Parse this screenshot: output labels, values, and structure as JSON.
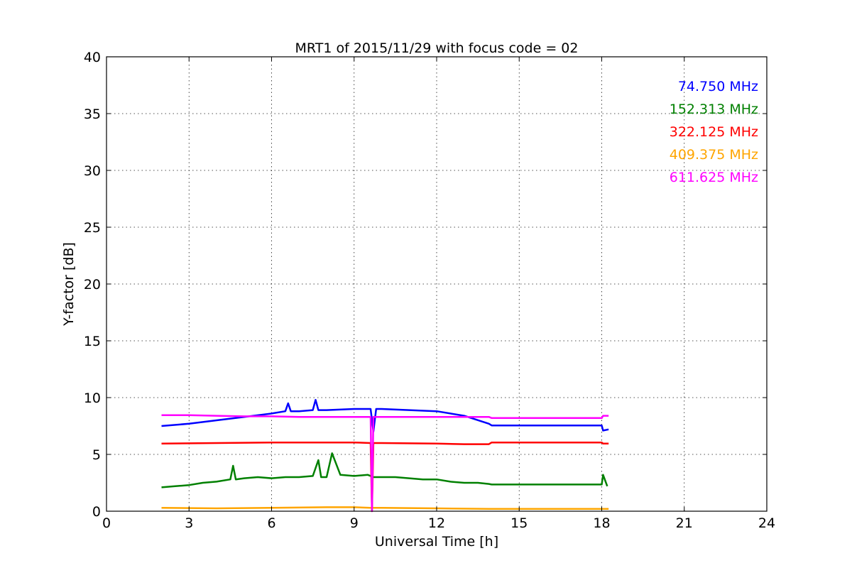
{
  "chart_data": {
    "type": "line",
    "title": "MRT1 of 2015/11/29 with focus code = 02",
    "xlabel": "Universal Time [h]",
    "ylabel": "Y-factor [dB]",
    "xlim": [
      0,
      24
    ],
    "ylim": [
      0,
      40
    ],
    "xticks": [
      0,
      3,
      6,
      9,
      12,
      15,
      18,
      21,
      24
    ],
    "yticks": [
      0,
      5,
      10,
      15,
      20,
      25,
      30,
      35,
      40
    ],
    "xtick_labels": [
      "0",
      "3",
      "6",
      "9",
      "12",
      "15",
      "18",
      "21",
      "24"
    ],
    "ytick_labels": [
      "0",
      "5",
      "10",
      "15",
      "20",
      "25",
      "30",
      "35",
      "40"
    ],
    "grid": true,
    "legend_position": "top-right",
    "series": [
      {
        "name": "74.750 MHz",
        "color": "#0000ff",
        "x": [
          2.0,
          3.0,
          4.0,
          5.0,
          6.0,
          6.5,
          6.6,
          6.7,
          7.0,
          7.5,
          7.6,
          7.7,
          8.0,
          9.0,
          9.6,
          9.7,
          9.8,
          10.0,
          11.0,
          12.0,
          13.0,
          13.9,
          14.0,
          18.0,
          18.05,
          18.25
        ],
        "y": [
          7.5,
          7.7,
          8.0,
          8.3,
          8.6,
          8.8,
          9.5,
          8.8,
          8.8,
          8.9,
          9.8,
          8.9,
          8.9,
          9.0,
          9.0,
          7.0,
          9.0,
          9.0,
          8.9,
          8.8,
          8.4,
          7.7,
          7.55,
          7.55,
          7.1,
          7.2
        ]
      },
      {
        "name": "152.313 MHz",
        "color": "#008000",
        "x": [
          2.0,
          2.5,
          3.0,
          3.5,
          4.0,
          4.5,
          4.6,
          4.7,
          5.0,
          5.5,
          6.0,
          6.5,
          7.0,
          7.5,
          7.7,
          7.8,
          8.0,
          8.2,
          8.5,
          9.0,
          9.5,
          9.7,
          10.0,
          10.5,
          11.0,
          11.5,
          12.0,
          12.5,
          13.0,
          13.5,
          13.9,
          14.0,
          18.0,
          18.05,
          18.2
        ],
        "y": [
          2.1,
          2.2,
          2.3,
          2.5,
          2.6,
          2.8,
          4.0,
          2.8,
          2.9,
          3.0,
          2.9,
          3.0,
          3.0,
          3.1,
          4.5,
          3.0,
          3.0,
          5.1,
          3.2,
          3.1,
          3.2,
          3.0,
          3.0,
          3.0,
          2.9,
          2.8,
          2.8,
          2.6,
          2.5,
          2.5,
          2.4,
          2.35,
          2.35,
          3.2,
          2.2
        ]
      },
      {
        "name": "322.125 MHz",
        "color": "#ff0000",
        "x": [
          2.0,
          4.0,
          6.0,
          8.0,
          9.0,
          9.6,
          9.65,
          9.7,
          10.0,
          12.0,
          13.0,
          13.9,
          14.0,
          18.0,
          18.05,
          18.25
        ],
        "y": [
          5.95,
          6.0,
          6.05,
          6.05,
          6.05,
          6.0,
          0.0,
          6.0,
          6.0,
          5.95,
          5.9,
          5.9,
          6.05,
          6.05,
          5.95,
          5.95
        ]
      },
      {
        "name": "409.375 MHz",
        "color": "#ffa500",
        "x": [
          2.0,
          4.0,
          6.0,
          8.0,
          9.0,
          9.6,
          9.7,
          10.0,
          12.0,
          13.9,
          14.0,
          18.0,
          18.25
        ],
        "y": [
          0.3,
          0.25,
          0.3,
          0.35,
          0.35,
          0.3,
          0.3,
          0.3,
          0.25,
          0.2,
          0.2,
          0.2,
          0.2
        ]
      },
      {
        "name": "611.625 MHz",
        "color": "#ff00ff",
        "x": [
          2.0,
          3.0,
          4.0,
          5.0,
          6.0,
          7.0,
          8.0,
          9.0,
          9.6,
          9.65,
          9.7,
          10.0,
          11.0,
          12.0,
          13.0,
          13.9,
          14.0,
          18.0,
          18.05,
          18.25
        ],
        "y": [
          8.45,
          8.45,
          8.4,
          8.35,
          8.35,
          8.3,
          8.3,
          8.3,
          8.3,
          0.0,
          8.3,
          8.3,
          8.3,
          8.3,
          8.3,
          8.3,
          8.2,
          8.2,
          8.4,
          8.4
        ]
      }
    ]
  }
}
